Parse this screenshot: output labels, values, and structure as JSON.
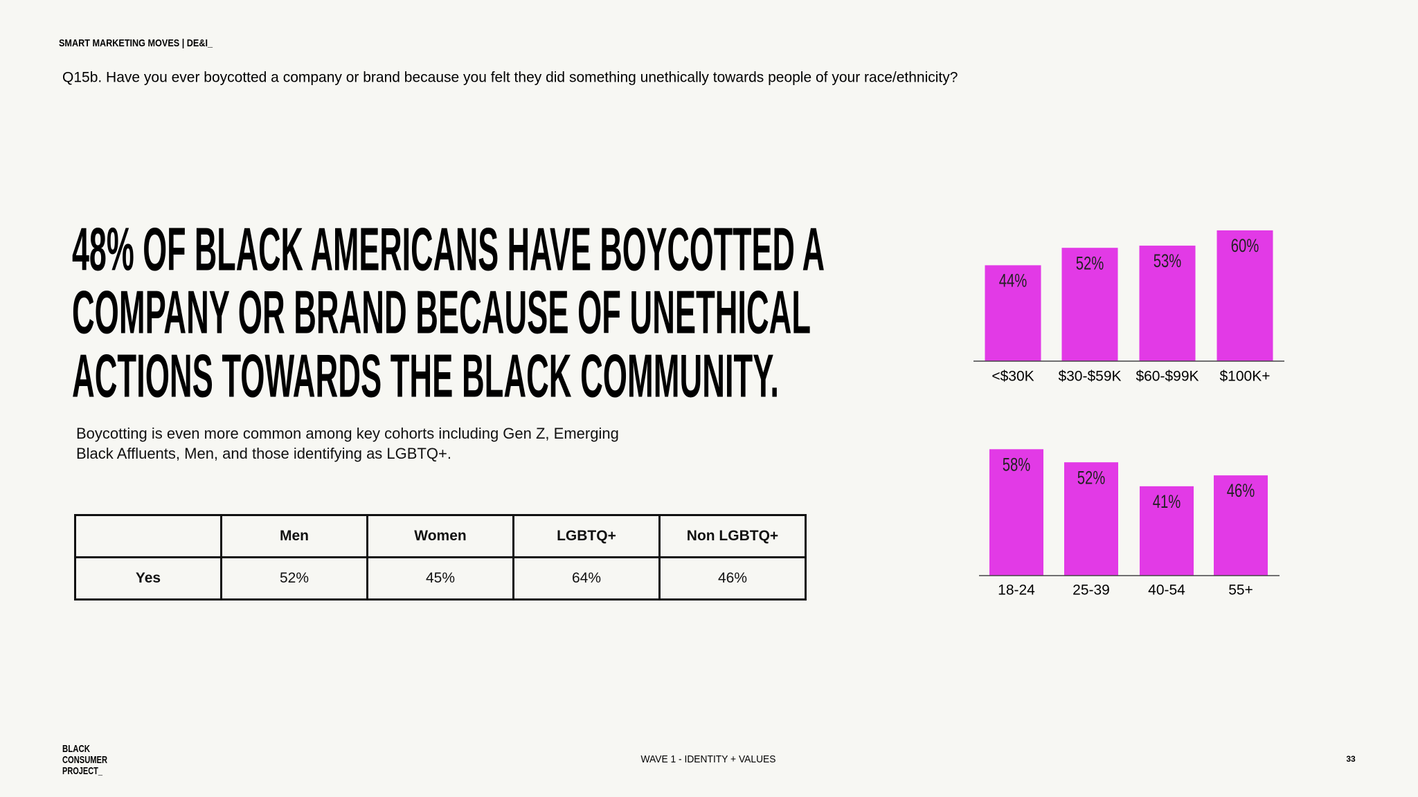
{
  "header": {
    "title": "SMART MARKETING MOVES | DE&I_",
    "question": "Q15b. Have you ever boycotted a company or brand because you felt they did something unethically towards people of your race/ethnicity?"
  },
  "headline": [
    "48% OF BLACK AMERICANS HAVE BOYCOTTED A",
    "COMPANY OR BRAND BECAUSE OF UNETHICAL",
    "ACTIONS TOWARDS THE BLACK COMMUNITY."
  ],
  "body": "Boycotting is even more common among key cohorts including Gen Z, Emerging Black Affluents, Men, and those identifying as LGBTQ+.",
  "table": {
    "columns": [
      "Men",
      "Women",
      "LGBTQ+",
      "Non LGBTQ+"
    ],
    "rows": [
      [
        "Yes",
        "52%",
        "45%",
        "64%",
        "46%"
      ]
    ]
  },
  "chart_data": [
    {
      "type": "bar",
      "categories": [
        "<$30K",
        "$30-$59K",
        "$60-$99K",
        "$100K+"
      ],
      "values": [
        44,
        52,
        53,
        60
      ],
      "value_labels": [
        "44%",
        "52%",
        "53%",
        "60%"
      ],
      "color": "#e23ae6"
    },
    {
      "type": "bar",
      "categories": [
        "18-24",
        "25-39",
        "40-54",
        "55+"
      ],
      "values": [
        58,
        52,
        41,
        46
      ],
      "value_labels": [
        "58%",
        "52%",
        "41%",
        "46%"
      ],
      "color": "#e23ae6"
    }
  ],
  "footer": {
    "logo": [
      "BLACK",
      "CONSUMER",
      "PROJECT_"
    ],
    "section": "WAVE 1 - IDENTITY + VALUES",
    "page": "33"
  }
}
